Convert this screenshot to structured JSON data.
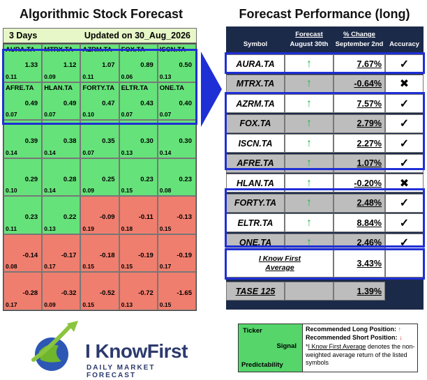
{
  "left": {
    "title": "Algorithmic Stock Forecast",
    "horizon": "3 Days",
    "updated": "Updated on 30_Aug_2026",
    "cells": [
      {
        "sym": "AURA.TA",
        "signal": "1.33",
        "pred": "0.11",
        "color": "green"
      },
      {
        "sym": "MTRX.TA",
        "signal": "1.12",
        "pred": "0.09",
        "color": "green"
      },
      {
        "sym": "AZRM.TA",
        "signal": "1.07",
        "pred": "0.11",
        "color": "green"
      },
      {
        "sym": "FOX.TA",
        "signal": "0.89",
        "pred": "0.06",
        "color": "green"
      },
      {
        "sym": "ISCN.TA",
        "signal": "0.50",
        "pred": "0.13",
        "color": "green"
      },
      {
        "sym": "AFRE.TA",
        "signal": "0.49",
        "pred": "0.07",
        "color": "green"
      },
      {
        "sym": "HLAN.TA",
        "signal": "0.49",
        "pred": "0.07",
        "color": "green"
      },
      {
        "sym": "FORTY.TA",
        "signal": "0.47",
        "pred": "0.10",
        "color": "green"
      },
      {
        "sym": "ELTR.TA",
        "signal": "0.43",
        "pred": "0.07",
        "color": "green"
      },
      {
        "sym": "ONE.TA",
        "signal": "0.40",
        "pred": "0.07",
        "color": "green"
      },
      {
        "sym": "",
        "signal": "0.39",
        "pred": "0.14",
        "color": "green"
      },
      {
        "sym": "",
        "signal": "0.38",
        "pred": "0.14",
        "color": "green"
      },
      {
        "sym": "",
        "signal": "0.35",
        "pred": "0.07",
        "color": "green"
      },
      {
        "sym": "",
        "signal": "0.30",
        "pred": "0.13",
        "color": "green"
      },
      {
        "sym": "",
        "signal": "0.30",
        "pred": "0.14",
        "color": "green"
      },
      {
        "sym": "",
        "signal": "0.29",
        "pred": "0.10",
        "color": "green"
      },
      {
        "sym": "",
        "signal": "0.28",
        "pred": "0.14",
        "color": "green"
      },
      {
        "sym": "",
        "signal": "0.25",
        "pred": "0.09",
        "color": "green"
      },
      {
        "sym": "",
        "signal": "0.23",
        "pred": "0.15",
        "color": "green"
      },
      {
        "sym": "",
        "signal": "0.23",
        "pred": "0.08",
        "color": "green"
      },
      {
        "sym": "",
        "signal": "0.23",
        "pred": "0.11",
        "color": "green"
      },
      {
        "sym": "",
        "signal": "0.22",
        "pred": "0.13",
        "color": "green"
      },
      {
        "sym": "",
        "signal": "-0.09",
        "pred": "0.19",
        "color": "red"
      },
      {
        "sym": "",
        "signal": "-0.11",
        "pred": "0.18",
        "color": "red"
      },
      {
        "sym": "",
        "signal": "-0.13",
        "pred": "0.15",
        "color": "red"
      },
      {
        "sym": "",
        "signal": "-0.14",
        "pred": "0.08",
        "color": "red"
      },
      {
        "sym": "",
        "signal": "-0.17",
        "pred": "0.17",
        "color": "red"
      },
      {
        "sym": "",
        "signal": "-0.18",
        "pred": "0.15",
        "color": "red"
      },
      {
        "sym": "",
        "signal": "-0.19",
        "pred": "0.15",
        "color": "red"
      },
      {
        "sym": "",
        "signal": "-0.19",
        "pred": "0.17",
        "color": "red"
      },
      {
        "sym": "",
        "signal": "-0.28",
        "pred": "0.17",
        "color": "red"
      },
      {
        "sym": "",
        "signal": "-0.32",
        "pred": "0.09",
        "color": "red"
      },
      {
        "sym": "",
        "signal": "-0.52",
        "pred": "0.15",
        "color": "red"
      },
      {
        "sym": "",
        "signal": "-0.72",
        "pred": "0.13",
        "color": "red"
      },
      {
        "sym": "",
        "signal": "-1.65",
        "pred": "0.15",
        "color": "red"
      }
    ]
  },
  "right": {
    "title": "Forecast Performance (long)",
    "headers": {
      "symbol": "Symbol",
      "forecast": "Forecast",
      "forecast_date": "August 30th",
      "change": "% Change",
      "change_date": "September 2nd",
      "accuracy": "Accuracy"
    },
    "rows": [
      {
        "symbol": "AURA.TA",
        "arrow": "↑",
        "change": "7.67%",
        "acc": "✓",
        "shade": "white"
      },
      {
        "symbol": "MTRX.TA",
        "arrow": "↑",
        "change": "-0.64%",
        "acc": "✖",
        "shade": "gray"
      },
      {
        "symbol": "AZRM.TA",
        "arrow": "↑",
        "change": "7.57%",
        "acc": "✓",
        "shade": "white"
      },
      {
        "symbol": "FOX.TA",
        "arrow": "↑",
        "change": "2.79%",
        "acc": "✓",
        "shade": "gray"
      },
      {
        "symbol": "ISCN.TA",
        "arrow": "↑",
        "change": "2.27%",
        "acc": "✓",
        "shade": "white"
      },
      {
        "symbol": "AFRE.TA",
        "arrow": "↑",
        "change": "1.07%",
        "acc": "✓",
        "shade": "gray"
      },
      {
        "symbol": "HLAN.TA",
        "arrow": "↑",
        "change": "-0.20%",
        "acc": "✖",
        "shade": "white"
      },
      {
        "symbol": "FORTY.TA",
        "arrow": "↑",
        "change": "2.48%",
        "acc": "✓",
        "shade": "gray"
      },
      {
        "symbol": "ELTR.TA",
        "arrow": "↑",
        "change": "8.84%",
        "acc": "✓",
        "shade": "white"
      },
      {
        "symbol": "ONE.TA",
        "arrow": "↑",
        "change": "2.46%",
        "acc": "✓",
        "shade": "gray"
      }
    ],
    "average_label_1": "I Know First",
    "average_label_2": "Average",
    "average_value": "3.43%",
    "tase_label": "TASE 125",
    "tase_value": "1.39%"
  },
  "logo": {
    "name": "I KnowFirst",
    "subtitle": "DAILY MARKET FORECAST"
  },
  "legend": {
    "ticker": "Ticker",
    "signal": "Signal",
    "predictability": "Predictability",
    "long_text": "Recommended Long Position:",
    "short_text": "Recommended Short Position:",
    "avg_prefix": "*",
    "avg_term": "I Know First Average",
    "avg_desc": "denotes the non-weighted average return of the listed symbols",
    "up_arrow": "↑",
    "down_arrow": "↓"
  },
  "colors": {
    "green_cell": "#66e27a",
    "red_cell": "#f07e6e",
    "highlight_blue": "#1f2fd6",
    "panel_navy": "#1c2a4a"
  }
}
